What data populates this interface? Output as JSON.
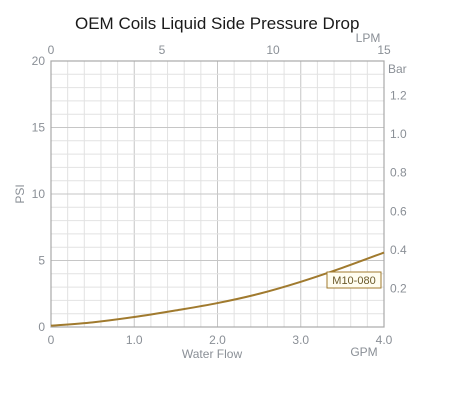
{
  "chart_data": {
    "type": "line",
    "title": "OEM Coils Liquid Side Pressure Drop",
    "x_bottom": {
      "label": "Water Flow",
      "unit": "GPM",
      "range": [
        0,
        4.0
      ],
      "ticks": [
        "0",
        "1.0",
        "2.0",
        "3.0",
        "4.0"
      ]
    },
    "x_top": {
      "unit": "LPM",
      "range": [
        0,
        15
      ],
      "ticks": [
        "0",
        "5",
        "10",
        "15"
      ]
    },
    "y_left": {
      "label": "PSI",
      "range": [
        0,
        20
      ],
      "ticks": [
        "0",
        "5",
        "10",
        "15",
        "20"
      ]
    },
    "y_right": {
      "unit": "Bar",
      "range": [
        0,
        1.379
      ],
      "ticks": [
        "0.2",
        "0.4",
        "0.6",
        "0.8",
        "1.0",
        "1.2"
      ]
    },
    "grid": true,
    "series": [
      {
        "name": "M10-080",
        "color": "#a07a2e",
        "x": [
          0,
          0.5,
          1.0,
          1.5,
          2.0,
          2.5,
          3.0,
          3.5,
          4.0
        ],
        "y": [
          0.1,
          0.35,
          0.75,
          1.25,
          1.8,
          2.5,
          3.4,
          4.45,
          5.6
        ]
      }
    ]
  }
}
